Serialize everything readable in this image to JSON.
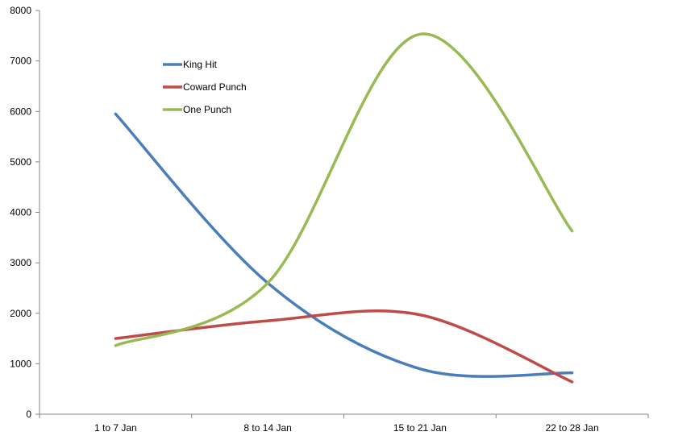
{
  "chart_data": {
    "type": "line",
    "smooth": true,
    "categories": [
      "1 to 7 Jan",
      "8 to 14 Jan",
      "15 to 21 Jan",
      "22 to 28 Jan"
    ],
    "series": [
      {
        "name": "King Hit",
        "color": "#4a7ebb",
        "values": [
          5950,
          2600,
          900,
          820
        ]
      },
      {
        "name": "Coward Punch",
        "color": "#be4b48",
        "values": [
          1500,
          1850,
          1970,
          640
        ]
      },
      {
        "name": "One Punch",
        "color": "#98b954",
        "values": [
          1360,
          2600,
          7530,
          3630
        ]
      }
    ],
    "yticks": [
      0,
      1000,
      2000,
      3000,
      4000,
      5000,
      6000,
      7000,
      8000
    ],
    "ylim": [
      0,
      8000
    ],
    "grid": false,
    "legend_position": "top-left inside"
  }
}
